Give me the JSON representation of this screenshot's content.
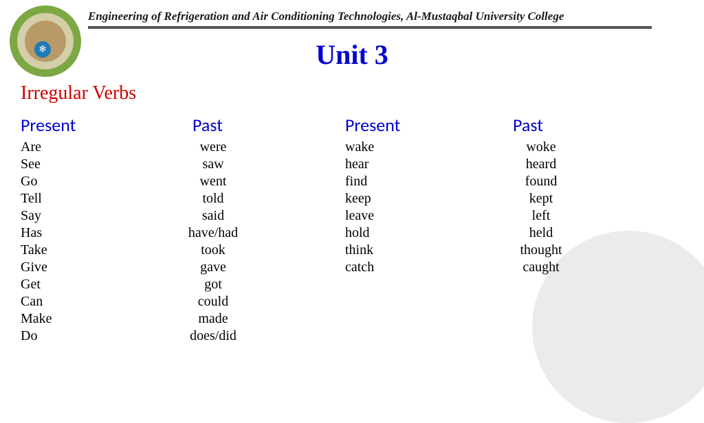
{
  "header": {
    "institution": "Engineering of Refrigeration and Air Conditioning Technologies, Al-Mustaqbal University College"
  },
  "title": "Unit 3",
  "subtitle": "Irregular Verbs",
  "columns": {
    "present": "Present",
    "past": "Past"
  },
  "left_verbs": [
    {
      "present": "Are",
      "past": "were"
    },
    {
      "present": "See",
      "past": "saw"
    },
    {
      "present": "Go",
      "past": "went"
    },
    {
      "present": "Tell",
      "past": "told"
    },
    {
      "present": "Say",
      "past": "said"
    },
    {
      "present": "Has",
      "past": "have/had"
    },
    {
      "present": "Take",
      "past": "took"
    },
    {
      "present": "Give",
      "past": "gave"
    },
    {
      "present": "Get",
      "past": "got"
    },
    {
      "present": "Can",
      "past": "could"
    },
    {
      "present": "Make",
      "past": "made"
    },
    {
      "present": "Do",
      "past": "does/did"
    }
  ],
  "right_verbs": [
    {
      "present": "wake",
      "past": "woke"
    },
    {
      "present": "hear",
      "past": "heard"
    },
    {
      "present": "find",
      "past": "found"
    },
    {
      "present": "keep",
      "past": "kept"
    },
    {
      "present": "leave",
      "past": "left"
    },
    {
      "present": "hold",
      "past": "held"
    },
    {
      "present": "think",
      "past": "thought"
    },
    {
      "present": "catch",
      "past": "caught"
    }
  ]
}
